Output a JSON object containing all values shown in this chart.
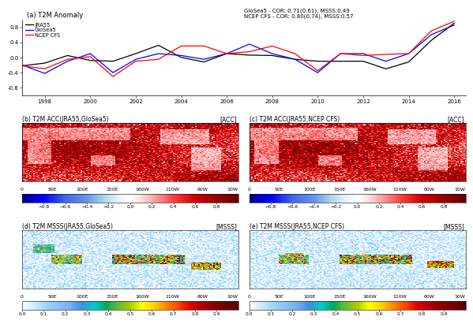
{
  "title_panel_a": "(a) T2M Anomaly",
  "annotation_line1": "GloSea5 - COR: 0.71(0.61), MSSS:0.49",
  "annotation_line2": "NCEP CFS - COR: 0.80(0.74), MSSS:0.57",
  "years": [
    1997,
    1998,
    1999,
    2000,
    2001,
    2002,
    2003,
    2004,
    2005,
    2006,
    2007,
    2008,
    2009,
    2010,
    2011,
    2012,
    2013,
    2014,
    2015,
    2016
  ],
  "jra55": [
    -0.22,
    -0.15,
    0.05,
    -0.08,
    -0.1,
    0.1,
    0.32,
    0.0,
    -0.12,
    0.1,
    0.06,
    0.05,
    -0.05,
    -0.1,
    -0.1,
    -0.1,
    -0.3,
    -0.12,
    0.45,
    0.9
  ],
  "glosea5": [
    -0.2,
    -0.42,
    -0.1,
    0.1,
    -0.4,
    -0.05,
    0.1,
    0.05,
    -0.05,
    0.1,
    0.35,
    0.1,
    -0.05,
    -0.4,
    0.1,
    0.1,
    -0.1,
    0.1,
    0.6,
    0.85
  ],
  "ncep_cfs": [
    -0.22,
    -0.3,
    -0.05,
    0.02,
    -0.5,
    -0.1,
    -0.05,
    0.3,
    0.3,
    0.1,
    0.15,
    0.3,
    0.1,
    -0.35,
    0.1,
    0.05,
    0.08,
    0.1,
    0.7,
    0.95
  ],
  "jra55_color": "black",
  "glosea5_color": "blue",
  "ncep_cfs_color": "red",
  "panel_b_title": "(b) T2M ACC(JRA55,GloSea5)",
  "panel_b_unit": "[ACC]",
  "panel_c_title": "(c) T2M ACC(JRA55,NCEP CFS)",
  "panel_c_unit": "[ACC]",
  "panel_d_title": "(d) T2M MSSS(JRA55,GloSea5)",
  "panel_d_unit": "[MSSS]",
  "panel_e_title": "(e) T2M MSSS(JRA55,NCEP CFS)",
  "panel_e_unit": "[MSSS]",
  "acc_colorbar_ticks": [
    -0.8,
    -0.6,
    -0.4,
    -0.2,
    0,
    0.2,
    0.4,
    0.6,
    0.8
  ],
  "msss_colorbar_ticks": [
    0,
    0.1,
    0.2,
    0.3,
    0.4,
    0.5,
    0.6,
    0.7,
    0.8,
    0.9
  ],
  "lon_ticks_labels": [
    "0",
    "50E",
    "100E",
    "150E",
    "160W",
    "110W",
    "60W",
    "10W"
  ],
  "lon_ticks_pos": [
    0,
    50,
    100,
    150,
    200,
    250,
    300,
    350
  ],
  "acc_colors": [
    [
      0.0,
      "#00008B"
    ],
    [
      0.1,
      "#0000FF"
    ],
    [
      0.2,
      "#4169E1"
    ],
    [
      0.3,
      "#6495ED"
    ],
    [
      0.38,
      "#ADD8E6"
    ],
    [
      0.45,
      "#E8F4FF"
    ],
    [
      0.5,
      "#FFFFFF"
    ],
    [
      0.55,
      "#FFE0E0"
    ],
    [
      0.62,
      "#FF9999"
    ],
    [
      0.7,
      "#FF4040"
    ],
    [
      0.8,
      "#CC0000"
    ],
    [
      0.9,
      "#990000"
    ],
    [
      1.0,
      "#660000"
    ]
  ],
  "msss_colors": [
    [
      0.0,
      "#FFFFFF"
    ],
    [
      0.05,
      "#D0EEFF"
    ],
    [
      0.111,
      "#A0D4FF"
    ],
    [
      0.222,
      "#70B0F0"
    ],
    [
      0.278,
      "#4090D8"
    ],
    [
      0.333,
      "#00CCCC"
    ],
    [
      0.389,
      "#00AA55"
    ],
    [
      0.444,
      "#66BB33"
    ],
    [
      0.5,
      "#AACC00"
    ],
    [
      0.556,
      "#FFFF00"
    ],
    [
      0.611,
      "#FFD000"
    ],
    [
      0.667,
      "#FF8800"
    ],
    [
      0.722,
      "#FF4400"
    ],
    [
      0.778,
      "#DD0000"
    ],
    [
      0.833,
      "#AA0000"
    ],
    [
      0.889,
      "#880000"
    ],
    [
      1.0,
      "#550000"
    ]
  ]
}
